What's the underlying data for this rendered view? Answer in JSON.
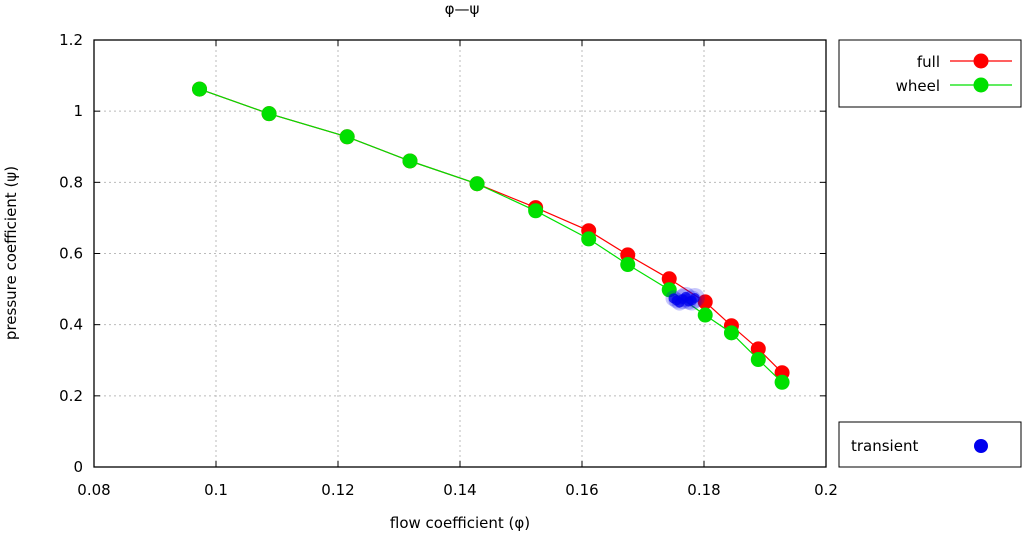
{
  "chart_data": {
    "type": "line",
    "title": "φ—ψ",
    "xlabel": "flow coefficient (φ)",
    "ylabel": "pressure coefficient (ψ)",
    "xlim": [
      0.08,
      0.2
    ],
    "ylim": [
      0,
      1.2
    ],
    "x_ticks": [
      "0.08",
      "0.1",
      "0.12",
      "0.14",
      "0.16",
      "0.18",
      "0.2"
    ],
    "y_ticks": [
      "0",
      "0.2",
      "0.4",
      "0.6",
      "0.8",
      "1",
      "1.2"
    ],
    "grid": true,
    "legend_position": "right",
    "series": [
      {
        "name": "full",
        "color": "#ff0000",
        "points": [
          [
            0.0973,
            1.062
          ],
          [
            0.1087,
            0.993
          ],
          [
            0.1215,
            0.928
          ],
          [
            0.1318,
            0.86
          ],
          [
            0.1428,
            0.796
          ],
          [
            0.1524,
            0.729
          ],
          [
            0.1611,
            0.664
          ],
          [
            0.1675,
            0.596
          ],
          [
            0.1743,
            0.529
          ],
          [
            0.1802,
            0.464
          ],
          [
            0.1845,
            0.397
          ],
          [
            0.1889,
            0.332
          ],
          [
            0.1928,
            0.265
          ]
        ]
      },
      {
        "name": "wheel",
        "color": "#00e000",
        "points": [
          [
            0.0973,
            1.062
          ],
          [
            0.1087,
            0.993
          ],
          [
            0.1215,
            0.928
          ],
          [
            0.1318,
            0.86
          ],
          [
            0.1428,
            0.796
          ],
          [
            0.1524,
            0.72
          ],
          [
            0.1611,
            0.641
          ],
          [
            0.1675,
            0.569
          ],
          [
            0.1743,
            0.498
          ],
          [
            0.1802,
            0.427
          ],
          [
            0.1845,
            0.377
          ],
          [
            0.1889,
            0.302
          ],
          [
            0.1928,
            0.238
          ]
        ]
      },
      {
        "name": "transient",
        "color": "#0000ee",
        "points": [
          [
            0.1755,
            0.468
          ],
          [
            0.1765,
            0.472
          ],
          [
            0.1775,
            0.465
          ],
          [
            0.1785,
            0.475
          ],
          [
            0.176,
            0.462
          ],
          [
            0.177,
            0.478
          ],
          [
            0.175,
            0.474
          ],
          [
            0.178,
            0.468
          ]
        ]
      }
    ]
  }
}
